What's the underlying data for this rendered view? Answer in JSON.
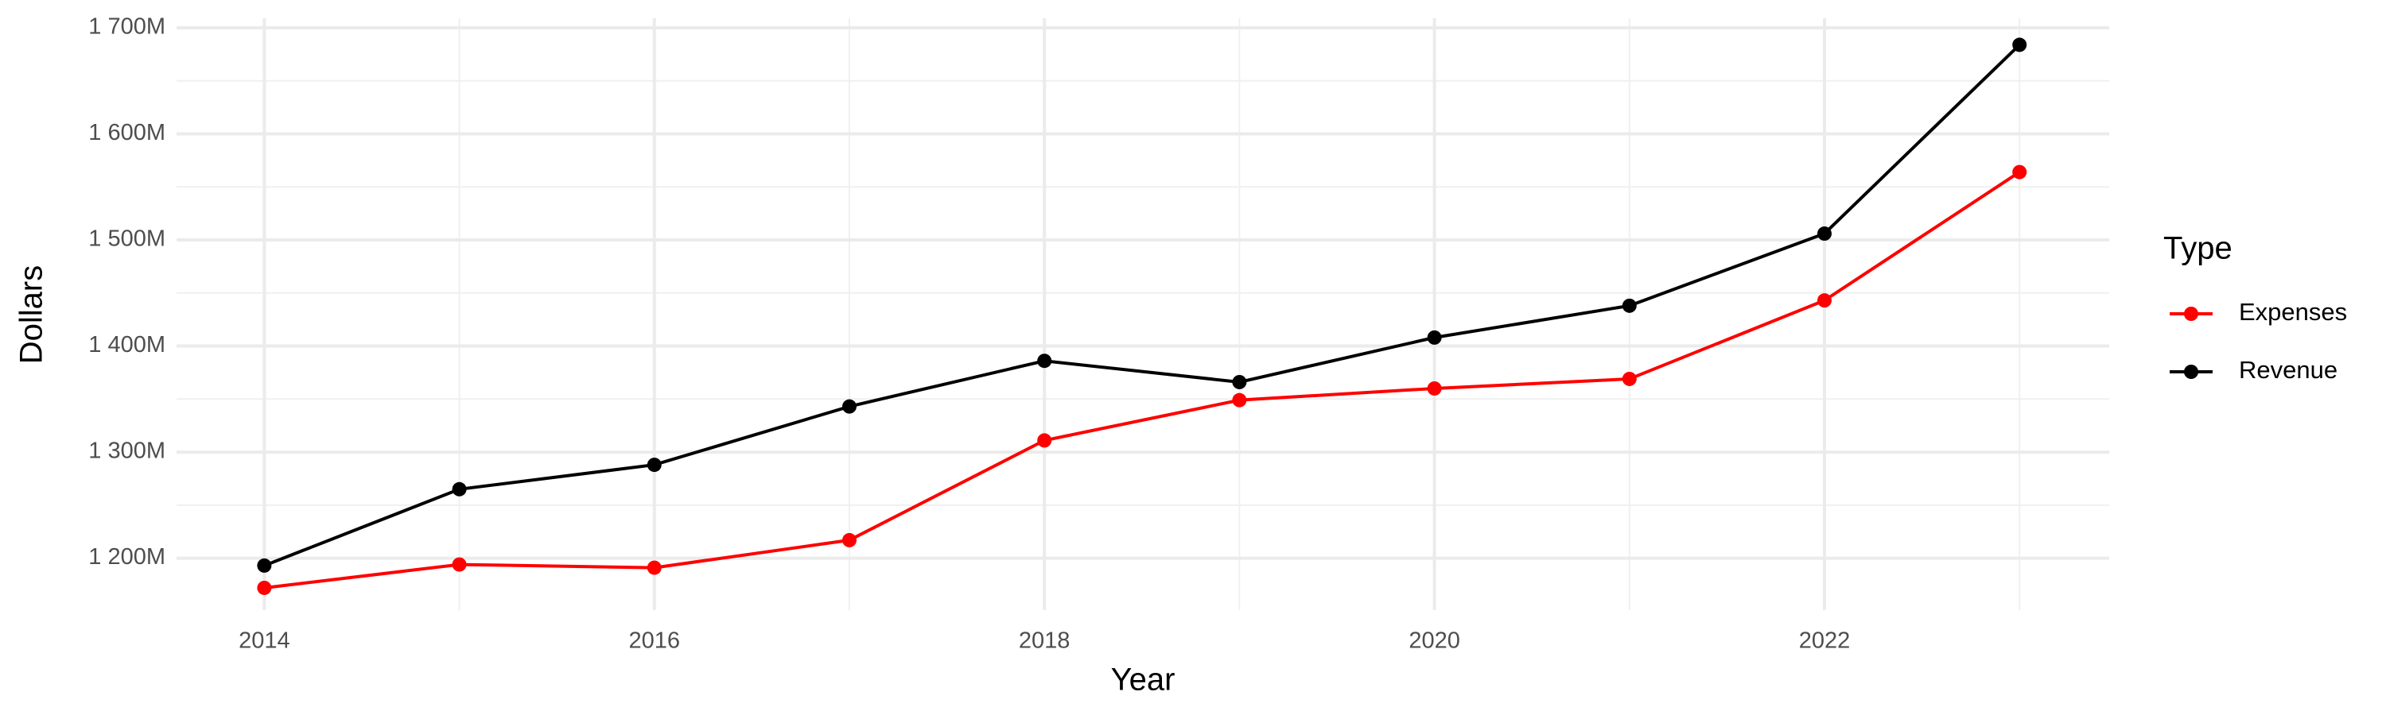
{
  "chart_data": {
    "type": "line",
    "x_label": "Year",
    "y_label": "Dollars",
    "legend_title": "Type",
    "x": [
      2014,
      2015,
      2016,
      2017,
      2018,
      2019,
      2020,
      2021,
      2022,
      2023
    ],
    "series": [
      {
        "name": "Expenses",
        "color": "#ff0000",
        "values": [
          1172000000,
          1194000000,
          1191000000,
          1217000000,
          1311000000,
          1349000000,
          1360000000,
          1369000000,
          1443000000,
          1564000000
        ]
      },
      {
        "name": "Revenue",
        "color": "#000000",
        "values": [
          1193000000,
          1265000000,
          1288000000,
          1343000000,
          1386000000,
          1366000000,
          1408000000,
          1438000000,
          1506000000,
          1684000000
        ]
      }
    ],
    "xlim": [
      2013.55,
      2023.46
    ],
    "xticks": [
      2014,
      2016,
      2018,
      2020,
      2022
    ],
    "ylim": [
      1151000000,
      1709000000
    ],
    "yticks": [
      {
        "value": 1200000000,
        "label": "1 200M"
      },
      {
        "value": 1300000000,
        "label": "1 300M"
      },
      {
        "value": 1400000000,
        "label": "1 400M"
      },
      {
        "value": 1500000000,
        "label": "1 500M"
      },
      {
        "value": 1600000000,
        "label": "1 600M"
      },
      {
        "value": 1700000000,
        "label": "1 700M"
      }
    ],
    "grid": true
  }
}
